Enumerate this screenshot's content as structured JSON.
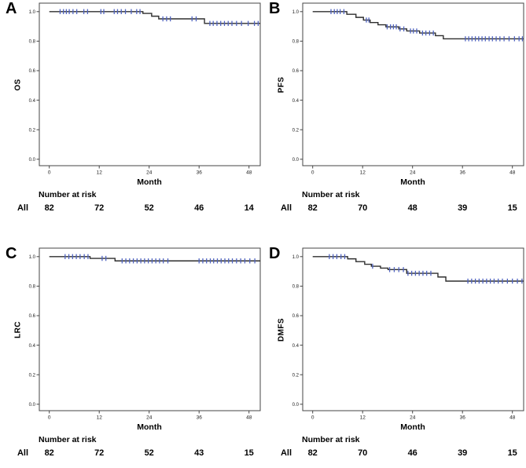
{
  "figure": {
    "labels": {
      "x_axis": "Month",
      "number_at_risk": "Number at risk",
      "risk_group": "All"
    },
    "colors": {
      "curve": "#2e2e2e",
      "censor": "#4f63c0",
      "frame": "#454545",
      "text": "#000000",
      "background": "#ffffff"
    }
  },
  "chart_data": [
    {
      "type": "line",
      "subtype": "kaplan-meier-step",
      "panel_label": "A",
      "ylabel": "OS",
      "xlabel": "Month",
      "xlim": [
        -2.4,
        50.7
      ],
      "ylim": [
        -0.05,
        1.05
      ],
      "x_ticks": [
        0,
        12,
        24,
        36,
        48
      ],
      "y_ticks": [
        0.0,
        0.2,
        0.4,
        0.6,
        0.8,
        1.0
      ],
      "y_tick_labels": [
        "0.0",
        "0.2",
        "0.4",
        "0.6",
        "0.8",
        "1.0"
      ],
      "grid": false,
      "legend": "none",
      "steps": [
        [
          0,
          1.0
        ],
        [
          22.5,
          0.988
        ],
        [
          24.6,
          0.969
        ],
        [
          26.3,
          0.951
        ],
        [
          37.3,
          0.92
        ]
      ],
      "final_value": 0.92,
      "censor_months": [
        2.6,
        3.4,
        4.1,
        4.8,
        5.7,
        6.6,
        8.3,
        9.2,
        12.4,
        13.1,
        15.6,
        16.4,
        17.3,
        18.3,
        19.7,
        21.0,
        21.8,
        27.3,
        28.2,
        29.1,
        34.3,
        35.3,
        38.6,
        39.4,
        40.3,
        41.2,
        42.1,
        43.0,
        43.9,
        45.0,
        46.2,
        47.8,
        49.3,
        50.2
      ],
      "at_risk": {
        "group": "All",
        "times": [
          0,
          12,
          24,
          36,
          48
        ],
        "counts": [
          82,
          72,
          52,
          46,
          14
        ]
      }
    },
    {
      "type": "line",
      "subtype": "kaplan-meier-step",
      "panel_label": "B",
      "ylabel": "PFS",
      "xlabel": "Month",
      "xlim": [
        -2.4,
        50.7
      ],
      "ylim": [
        -0.05,
        1.05
      ],
      "x_ticks": [
        0,
        12,
        24,
        36,
        48
      ],
      "y_ticks": [
        0.0,
        0.2,
        0.4,
        0.6,
        0.8,
        1.0
      ],
      "y_tick_labels": [
        "0.0",
        "0.2",
        "0.4",
        "0.6",
        "0.8",
        "1.0"
      ],
      "grid": false,
      "legend": "none",
      "steps": [
        [
          0,
          1.0
        ],
        [
          8.2,
          0.982
        ],
        [
          10.4,
          0.961
        ],
        [
          12.2,
          0.943
        ],
        [
          13.8,
          0.926
        ],
        [
          15.7,
          0.911
        ],
        [
          17.6,
          0.897
        ],
        [
          20.7,
          0.883
        ],
        [
          22.6,
          0.869
        ],
        [
          25.7,
          0.855
        ],
        [
          29.5,
          0.837
        ],
        [
          31.4,
          0.816
        ]
      ],
      "final_value": 0.816,
      "censor_months": [
        4.4,
        5.2,
        5.9,
        6.6,
        7.5,
        12.9,
        13.5,
        17.9,
        18.7,
        19.4,
        20.1,
        21.0,
        21.9,
        23.5,
        24.2,
        25.0,
        26.4,
        27.2,
        28.1,
        29.0,
        36.7,
        37.5,
        38.3,
        39.1,
        39.9,
        40.7,
        41.5,
        42.4,
        43.2,
        44.1,
        45.0,
        46.0,
        47.2,
        48.5,
        49.6,
        50.4
      ],
      "at_risk": {
        "group": "All",
        "times": [
          0,
          12,
          24,
          36,
          48
        ],
        "counts": [
          82,
          70,
          48,
          39,
          15
        ]
      }
    },
    {
      "type": "line",
      "subtype": "kaplan-meier-step",
      "panel_label": "C",
      "ylabel": "LRC",
      "xlabel": "Month",
      "xlim": [
        -2.4,
        50.7
      ],
      "ylim": [
        -0.05,
        1.05
      ],
      "x_ticks": [
        0,
        12,
        24,
        36,
        48
      ],
      "y_ticks": [
        0.0,
        0.2,
        0.4,
        0.6,
        0.8,
        1.0
      ],
      "y_tick_labels": [
        "0.0",
        "0.2",
        "0.4",
        "0.6",
        "0.8",
        "1.0"
      ],
      "grid": false,
      "legend": "none",
      "steps": [
        [
          0,
          1.0
        ],
        [
          9.8,
          0.988
        ],
        [
          15.8,
          0.971
        ]
      ],
      "final_value": 0.971,
      "censor_months": [
        3.8,
        4.7,
        5.6,
        6.5,
        7.4,
        8.4,
        9.3,
        12.7,
        13.6,
        17.5,
        18.4,
        19.3,
        20.2,
        21.1,
        22.0,
        22.9,
        23.8,
        24.7,
        25.6,
        26.5,
        27.4,
        28.5,
        36.0,
        36.9,
        37.8,
        38.7,
        39.5,
        40.4,
        41.3,
        42.2,
        43.1,
        44.0,
        45.0,
        46.0,
        47.0,
        48.2,
        49.4
      ],
      "at_risk": {
        "group": "All",
        "times": [
          0,
          12,
          24,
          36,
          48
        ],
        "counts": [
          82,
          72,
          52,
          43,
          15
        ]
      }
    },
    {
      "type": "line",
      "subtype": "kaplan-meier-step",
      "panel_label": "D",
      "ylabel": "DMFS",
      "xlabel": "Month",
      "xlim": [
        -2.4,
        50.7
      ],
      "ylim": [
        -0.05,
        1.05
      ],
      "x_ticks": [
        0,
        12,
        24,
        36,
        48
      ],
      "y_ticks": [
        0.0,
        0.2,
        0.4,
        0.6,
        0.8,
        1.0
      ],
      "y_tick_labels": [
        "0.0",
        "0.2",
        "0.4",
        "0.6",
        "0.8",
        "1.0"
      ],
      "grid": false,
      "legend": "none",
      "steps": [
        [
          0,
          1.0
        ],
        [
          8.4,
          0.985
        ],
        [
          10.4,
          0.966
        ],
        [
          12.5,
          0.948
        ],
        [
          14.1,
          0.935
        ],
        [
          16.3,
          0.922
        ],
        [
          18.1,
          0.912
        ],
        [
          22.6,
          0.887
        ],
        [
          30.1,
          0.862
        ],
        [
          32.0,
          0.834
        ]
      ],
      "final_value": 0.834,
      "censor_months": [
        4.0,
        4.9,
        5.8,
        6.8,
        7.7,
        14.4,
        18.5,
        19.6,
        20.7,
        21.8,
        22.9,
        23.8,
        24.7,
        25.6,
        26.5,
        27.4,
        28.4,
        37.3,
        38.2,
        39.1,
        40.0,
        40.9,
        41.8,
        42.7,
        43.6,
        44.6,
        45.6,
        46.8,
        48.0,
        49.2,
        50.3
      ],
      "at_risk": {
        "group": "All",
        "times": [
          0,
          12,
          24,
          36,
          48
        ],
        "counts": [
          82,
          70,
          46,
          39,
          15
        ]
      }
    }
  ]
}
